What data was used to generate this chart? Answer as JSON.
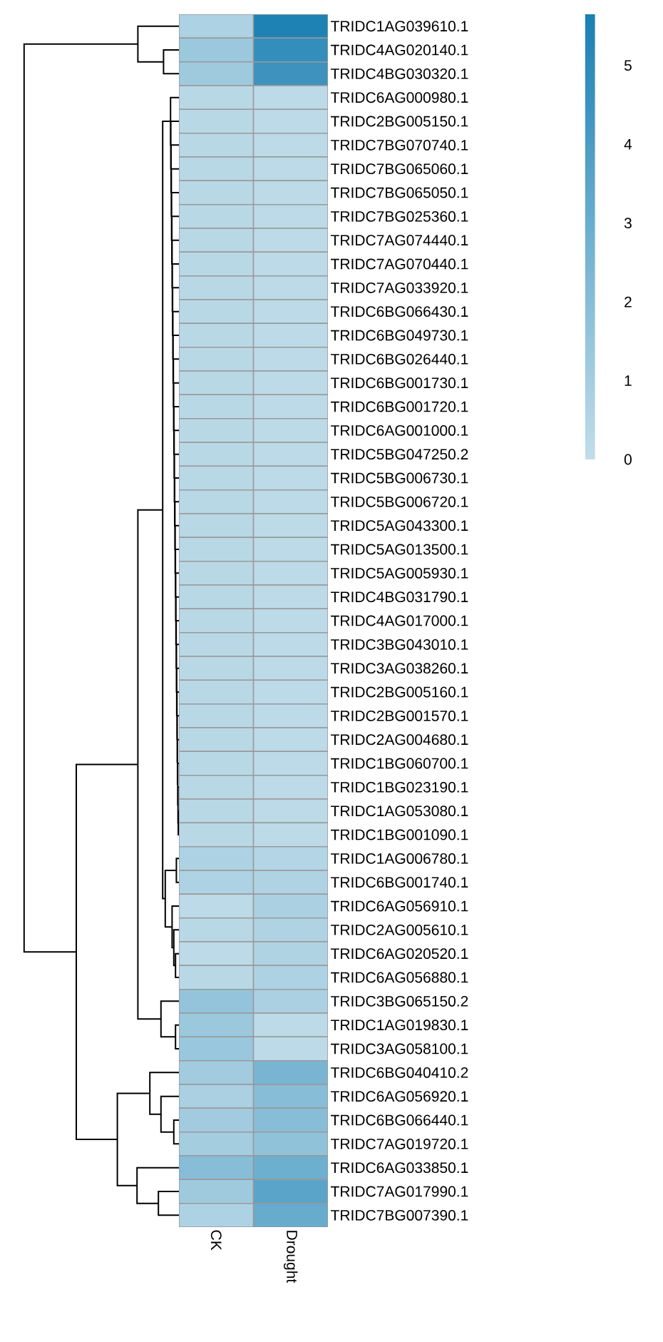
{
  "chart_data": {
    "type": "heatmap",
    "categories": [
      "CK",
      "Drought"
    ],
    "y_categories": [
      "TRIDC1AG039610.1",
      "TRIDC4AG020140.1",
      "TRIDC4BG030320.1",
      "TRIDC6AG000980.1",
      "TRIDC2BG005150.1",
      "TRIDC7BG070740.1",
      "TRIDC7BG065060.1",
      "TRIDC7BG065050.1",
      "TRIDC7BG025360.1",
      "TRIDC7AG074440.1",
      "TRIDC7AG070440.1",
      "TRIDC7AG033920.1",
      "TRIDC6BG066430.1",
      "TRIDC6BG049730.1",
      "TRIDC6BG026440.1",
      "TRIDC6BG001730.1",
      "TRIDC6BG001720.1",
      "TRIDC6AG001000.1",
      "TRIDC5BG047250.2",
      "TRIDC5BG006730.1",
      "TRIDC5BG006720.1",
      "TRIDC5AG043300.1",
      "TRIDC5AG013500.1",
      "TRIDC5AG005930.1",
      "TRIDC4BG031790.1",
      "TRIDC4AG017000.1",
      "TRIDC3BG043010.1",
      "TRIDC3AG038260.1",
      "TRIDC2BG005160.1",
      "TRIDC2BG001570.1",
      "TRIDC2AG004680.1",
      "TRIDC1BG060700.1",
      "TRIDC1BG023190.1",
      "TRIDC1AG053080.1",
      "TRIDC1BG001090.1",
      "TRIDC1AG006780.1",
      "TRIDC6BG001740.1",
      "TRIDC6AG056910.1",
      "TRIDC2AG005610.1",
      "TRIDC6AG020520.1",
      "TRIDC6AG056880.1",
      "TRIDC3BG065150.2",
      "TRIDC1AG019830.1",
      "TRIDC3AG058100.1",
      "TRIDC6BG040410.2",
      "TRIDC6AG056920.1",
      "TRIDC6BG066440.1",
      "TRIDC7AG019720.1",
      "TRIDC6AG033850.1",
      "TRIDC7AG017990.1",
      "TRIDC7BG007390.1"
    ],
    "cells": [
      [
        0.7,
        5.5
      ],
      [
        1.3,
        4.8
      ],
      [
        1.2,
        4.5
      ],
      [
        0.3,
        0.2
      ],
      [
        0.3,
        0.2
      ],
      [
        0.3,
        0.2
      ],
      [
        0.3,
        0.2
      ],
      [
        0.3,
        0.2
      ],
      [
        0.3,
        0.2
      ],
      [
        0.3,
        0.2
      ],
      [
        0.3,
        0.2
      ],
      [
        0.3,
        0.2
      ],
      [
        0.3,
        0.2
      ],
      [
        0.3,
        0.2
      ],
      [
        0.3,
        0.2
      ],
      [
        0.3,
        0.2
      ],
      [
        0.3,
        0.2
      ],
      [
        0.3,
        0.2
      ],
      [
        0.3,
        0.2
      ],
      [
        0.3,
        0.2
      ],
      [
        0.3,
        0.2
      ],
      [
        0.3,
        0.2
      ],
      [
        0.3,
        0.2
      ],
      [
        0.3,
        0.2
      ],
      [
        0.3,
        0.2
      ],
      [
        0.3,
        0.2
      ],
      [
        0.3,
        0.2
      ],
      [
        0.3,
        0.2
      ],
      [
        0.3,
        0.2
      ],
      [
        0.3,
        0.2
      ],
      [
        0.3,
        0.2
      ],
      [
        0.3,
        0.2
      ],
      [
        0.3,
        0.2
      ],
      [
        0.3,
        0.2
      ],
      [
        0.3,
        0.2
      ],
      [
        0.7,
        0.5
      ],
      [
        0.7,
        0.6
      ],
      [
        0.2,
        0.8
      ],
      [
        0.3,
        0.6
      ],
      [
        0.2,
        0.6
      ],
      [
        0.3,
        0.7
      ],
      [
        1.6,
        0.8
      ],
      [
        1.3,
        0.2
      ],
      [
        1.4,
        0.2
      ],
      [
        1.1,
        2.5
      ],
      [
        0.8,
        2.0
      ],
      [
        1.1,
        2.0
      ],
      [
        1.0,
        1.7
      ],
      [
        2.0,
        2.9
      ],
      [
        1.2,
        3.5
      ],
      [
        0.7,
        3.1
      ]
    ],
    "clim": [
      0,
      5.65
    ],
    "cticks": [
      0,
      1,
      2,
      3,
      4,
      5
    ]
  }
}
